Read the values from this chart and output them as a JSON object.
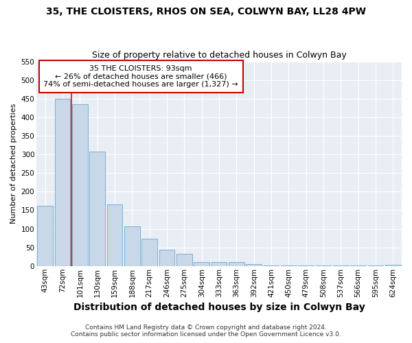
{
  "title": "35, THE CLOISTERS, RHOS ON SEA, COLWYN BAY, LL28 4PW",
  "subtitle": "Size of property relative to detached houses in Colwyn Bay",
  "xlabel": "Distribution of detached houses by size in Colwyn Bay",
  "ylabel": "Number of detached properties",
  "categories": [
    "43sqm",
    "72sqm",
    "101sqm",
    "130sqm",
    "159sqm",
    "188sqm",
    "217sqm",
    "246sqm",
    "275sqm",
    "304sqm",
    "333sqm",
    "363sqm",
    "392sqm",
    "421sqm",
    "450sqm",
    "479sqm",
    "508sqm",
    "537sqm",
    "566sqm",
    "595sqm",
    "624sqm"
  ],
  "values": [
    162,
    450,
    435,
    307,
    165,
    106,
    73,
    43,
    33,
    10,
    10,
    10,
    5,
    2,
    2,
    2,
    2,
    2,
    2,
    2,
    3
  ],
  "bar_color": "#c8d8e8",
  "bar_edge_color": "#7bafd4",
  "annotation_line1": "35 THE CLOISTERS: 93sqm",
  "annotation_line2": "← 26% of detached houses are smaller (466)",
  "annotation_line3": "74% of semi-detached houses are larger (1,327) →",
  "annotation_box_facecolor": "#ffffff",
  "annotation_box_edgecolor": "#cc0000",
  "red_line_x": 1.5,
  "footer1": "Contains HM Land Registry data © Crown copyright and database right 2024.",
  "footer2": "Contains public sector information licensed under the Open Government Licence v3.0.",
  "ylim": [
    0,
    550
  ],
  "yticks": [
    0,
    50,
    100,
    150,
    200,
    250,
    300,
    350,
    400,
    450,
    500,
    550
  ],
  "fig_facecolor": "#ffffff",
  "plot_facecolor": "#e8eef4",
  "grid_color": "#ffffff",
  "title_fontsize": 10,
  "subtitle_fontsize": 9,
  "xlabel_fontsize": 10,
  "ylabel_fontsize": 8,
  "tick_fontsize": 7.5,
  "ann_fontsize": 8,
  "footer_fontsize": 6.5
}
